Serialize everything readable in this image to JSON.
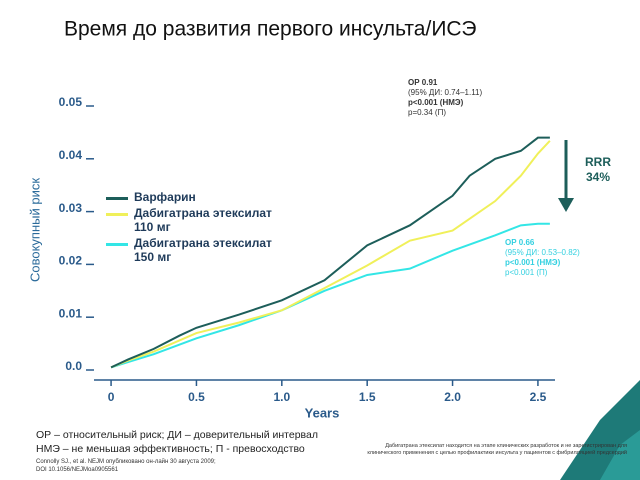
{
  "chart_data": {
    "type": "line",
    "title": "Время до развития первого инсульта/ИСЭ",
    "x_label": "Years",
    "y_label": "Совокупный риск",
    "xlim": [
      -0.1,
      2.6
    ],
    "ylim": [
      0,
      0.05
    ],
    "xticks": [
      0,
      0.5,
      {
        "value": 1.0,
        "label": "1.0"
      },
      1.5,
      {
        "value": 2.0,
        "label": "2.0"
      },
      2.5
    ],
    "yticks": [
      {
        "value": 0,
        "label": "0.0"
      },
      0.01,
      0.02,
      0.03,
      0.04,
      0.05
    ],
    "series": [
      {
        "name": "Варфарин",
        "color": "#1d5e5a",
        "x": [
          0,
          0.1,
          0.25,
          0.4,
          0.5,
          0.75,
          1.0,
          1.25,
          1.5,
          1.75,
          2.0,
          2.1,
          2.25,
          2.4,
          2.5,
          2.57
        ],
        "values": [
          0.0005,
          0.002,
          0.004,
          0.0065,
          0.008,
          0.0105,
          0.0132,
          0.017,
          0.0236,
          0.0274,
          0.033,
          0.0368,
          0.04,
          0.0415,
          0.044,
          0.044
        ]
      },
      {
        "name": "Дабигатрана этексилат 110 мг",
        "color": "#f0f05a",
        "x": [
          0,
          0.1,
          0.25,
          0.5,
          0.75,
          1.0,
          1.25,
          1.5,
          1.75,
          2.0,
          2.25,
          2.4,
          2.5,
          2.57
        ],
        "values": [
          0.0005,
          0.0018,
          0.0035,
          0.007,
          0.009,
          0.0113,
          0.0155,
          0.0198,
          0.0245,
          0.0264,
          0.032,
          0.0368,
          0.041,
          0.0434
        ]
      },
      {
        "name": "Дабигатрана этексилат 150 мг",
        "color": "#33e6e6",
        "x": [
          0,
          0.1,
          0.25,
          0.5,
          0.75,
          1.0,
          1.25,
          1.5,
          1.75,
          2.0,
          2.25,
          2.4,
          2.5,
          2.57
        ],
        "values": [
          0.0005,
          0.0015,
          0.003,
          0.006,
          0.0085,
          0.0113,
          0.015,
          0.018,
          0.0192,
          0.0226,
          0.0255,
          0.0274,
          0.0277,
          0.0277
        ]
      }
    ],
    "annotations": {
      "rr1": [
        "ОР 0.91",
        "(95% ДИ: 0.74–1.11)",
        "p<0.001 (НМЭ)",
        "p=0.34 (П)"
      ],
      "rr2": [
        "ОР 0.66",
        "(95% ДИ: 0.53–0.82)",
        "p<0.001 (НМЭ)",
        "p<0.001 (П)"
      ],
      "rrr": [
        "RRR",
        "34%"
      ]
    },
    "footnotes": [
      "ОР – относительный риск; ДИ – доверительный интервал",
      "НМЭ – не меньшая эффективность; П - превосходство"
    ],
    "reference": [
      "Connolly SJ., et al. NEJM опубликовано он-лайн 30 августа 2009;",
      "DOI 10.1056/NEJMoa0905561"
    ],
    "disclaimer": "Дабигатрана этексилат находится на этапе клинических разработок и не зарегистрирован для клинического применения с целью профилактики инсульта у пациентов с фибрилляцией предсердий"
  }
}
